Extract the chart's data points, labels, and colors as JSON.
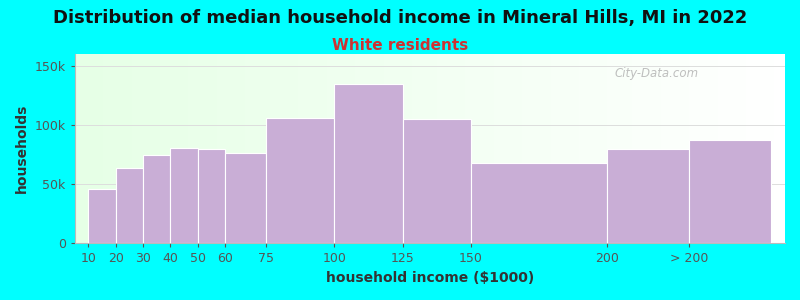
{
  "title": "Distribution of median household income in Mineral Hills, MI in 2022",
  "subtitle": "White residents",
  "xlabel": "household income ($1000)",
  "ylabel": "households",
  "background_color": "#00FFFF",
  "bar_color": "#C9AED6",
  "bar_edge_color": "#FFFFFF",
  "bar_lefts": [
    10,
    20,
    30,
    40,
    50,
    60,
    75,
    100,
    125,
    150,
    200,
    230
  ],
  "bar_widths": [
    10,
    10,
    10,
    10,
    10,
    15,
    25,
    25,
    25,
    50,
    30,
    30
  ],
  "bar_values": [
    46000,
    64000,
    75000,
    81000,
    80000,
    76000,
    106000,
    135000,
    105000,
    68000,
    80000,
    87000
  ],
  "ylim": [
    0,
    160000
  ],
  "yticks": [
    0,
    50000,
    100000,
    150000
  ],
  "ytick_labels": [
    "0",
    "50k",
    "100k",
    "150k"
  ],
  "xtick_positions": [
    10,
    20,
    30,
    40,
    50,
    60,
    75,
    100,
    125,
    150,
    200,
    230
  ],
  "xtick_labels": [
    "10",
    "20",
    "30",
    "40",
    "50",
    "60",
    "75",
    "100",
    "125",
    "150",
    "200",
    "> 200"
  ],
  "xlim_left": 5,
  "xlim_right": 265,
  "watermark": "City-Data.com",
  "title_fontsize": 13,
  "subtitle_fontsize": 11,
  "subtitle_color": "#CC3333",
  "axis_label_fontsize": 10,
  "tick_fontsize": 9
}
